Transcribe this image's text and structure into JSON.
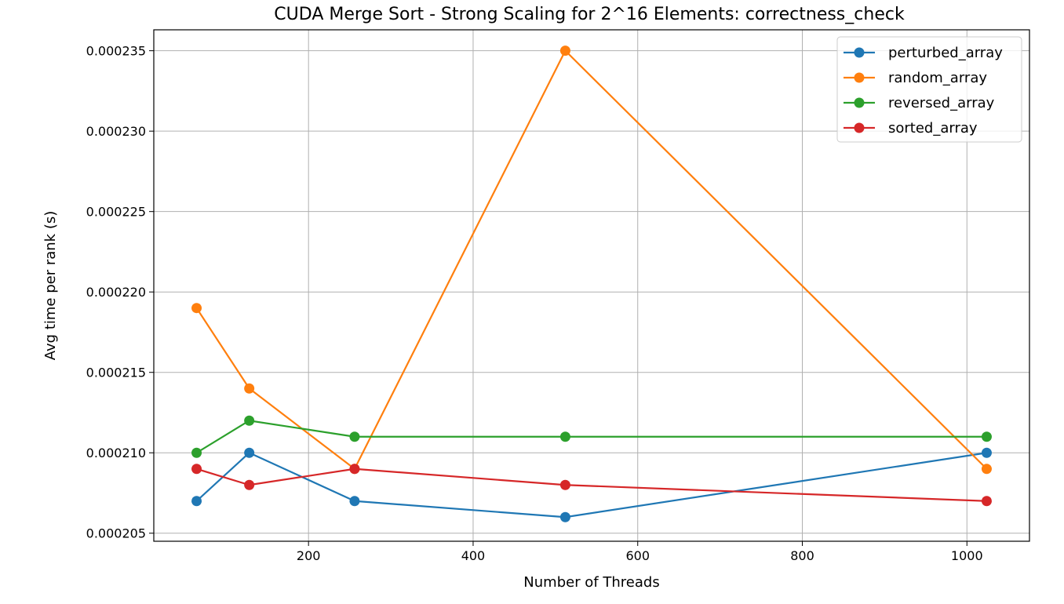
{
  "chart_data": {
    "type": "line",
    "title": "CUDA Merge Sort - Strong Scaling for 2^16 Elements: correctness_check",
    "xlabel": "Number of Threads",
    "ylabel": "Avg time per rank (s)",
    "x": [
      64,
      128,
      256,
      512,
      1024
    ],
    "xlim": [
      12,
      1076
    ],
    "ylim": [
      0.0002045,
      0.0002363
    ],
    "xticks": [
      200,
      400,
      600,
      800,
      1000
    ],
    "yticks": [
      0.000205,
      0.00021,
      0.000215,
      0.00022,
      0.000225,
      0.00023,
      0.000235
    ],
    "ytick_labels": [
      "0.000205",
      "0.000210",
      "0.000215",
      "0.000220",
      "0.000225",
      "0.000230",
      "0.000235"
    ],
    "grid": true,
    "legend_position": "top-right",
    "marker": "circle",
    "series": [
      {
        "name": "perturbed_array",
        "color": "#1f77b4",
        "values": [
          0.000207,
          0.00021,
          0.000207,
          0.000206,
          0.00021
        ]
      },
      {
        "name": "random_array",
        "color": "#ff7f0e",
        "values": [
          0.000219,
          0.000214,
          0.000209,
          0.000235,
          0.000209
        ]
      },
      {
        "name": "reversed_array",
        "color": "#2ca02c",
        "values": [
          0.00021,
          0.000212,
          0.000211,
          0.000211,
          0.000211
        ]
      },
      {
        "name": "sorted_array",
        "color": "#d62728",
        "values": [
          0.000209,
          0.000208,
          0.000209,
          0.000208,
          0.000207
        ]
      }
    ]
  }
}
